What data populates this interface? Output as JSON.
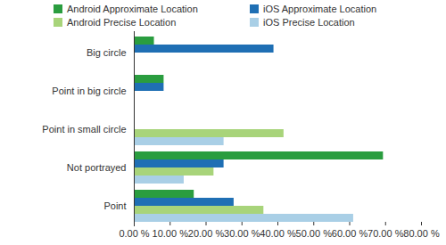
{
  "chart_data": {
    "type": "bar",
    "orientation": "horizontal",
    "legend": "top",
    "grid": false,
    "categories": [
      "Big circle",
      "Point in big circle",
      "Point in small circle",
      "Not portrayed",
      "Point"
    ],
    "series": [
      {
        "name": "Android Approximate Location",
        "color": "#2a9d3f",
        "values": [
          5.6,
          8.3,
          0,
          69.4,
          16.7
        ]
      },
      {
        "name": "iOS Approximate Location",
        "color": "#1f6fb4",
        "values": [
          38.9,
          8.3,
          0,
          25.0,
          27.8
        ]
      },
      {
        "name": "Android Precise Location",
        "color": "#a8d47a",
        "values": [
          0,
          0,
          41.7,
          22.2,
          36.1
        ]
      },
      {
        "name": "iOS Precise Location",
        "color": "#a9cfe6",
        "values": [
          0,
          0,
          25.0,
          13.9,
          61.1
        ]
      }
    ],
    "xlim": [
      0,
      80
    ],
    "xticks": [
      {
        "value": 0,
        "label": "0.00 %"
      },
      {
        "value": 10,
        "label": "10.00 %"
      },
      {
        "value": 20,
        "label": "20.00 %"
      },
      {
        "value": 30,
        "label": "30.00 %"
      },
      {
        "value": 40,
        "label": "40.00 %"
      },
      {
        "value": 50,
        "label": "50.00 %"
      },
      {
        "value": 60,
        "label": "60.00 %"
      },
      {
        "value": 70,
        "label": "70.00 %"
      },
      {
        "value": 80,
        "label": "80.00 %"
      }
    ]
  }
}
